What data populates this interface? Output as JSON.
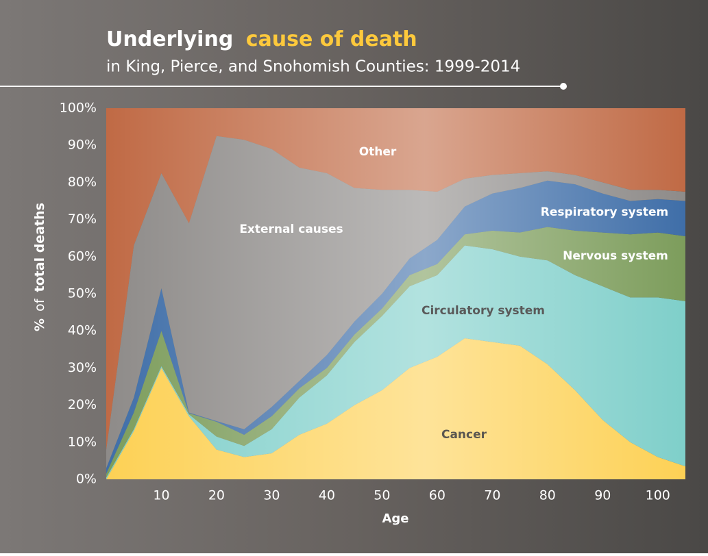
{
  "chart_data": {
    "type": "stacked_area",
    "title_parts": [
      "Underlying",
      "cause of death"
    ],
    "subtitle": "in King, Pierce, and Snohomish Counties: 1999-2014",
    "ylabel_parts": [
      "%",
      "of",
      "total deaths"
    ],
    "xlabel": "Age",
    "x": [
      0,
      5,
      10,
      15,
      20,
      25,
      30,
      35,
      40,
      45,
      50,
      55,
      60,
      65,
      70,
      75,
      80,
      85,
      90,
      95,
      100,
      105
    ],
    "series": [
      {
        "name": "Cancer",
        "color": "#fdd155",
        "values": [
          0,
          13,
          30,
          17,
          8,
          6,
          7,
          12,
          15,
          20,
          24,
          30,
          33,
          38,
          37,
          36,
          31,
          24,
          16,
          10,
          6,
          3.5
        ]
      },
      {
        "name": "Circulatory system",
        "color": "#7fcfca",
        "values": [
          0.5,
          0.5,
          0.5,
          0.5,
          3.5,
          3,
          6.5,
          10,
          13,
          17,
          20,
          22,
          22,
          25,
          25,
          24,
          28,
          31,
          36,
          39,
          43,
          44.5
        ]
      },
      {
        "name": "Nervous system",
        "color": "#7d9d5c",
        "values": [
          1,
          4.5,
          9.5,
          0.3,
          4,
          3,
          3.5,
          2.5,
          2,
          2,
          2,
          3,
          3,
          3,
          5,
          6.5,
          9,
          12,
          14.5,
          17,
          17.5,
          17.5
        ]
      },
      {
        "name": "Respiratory system",
        "color": "#3f6ea8",
        "values": [
          1.5,
          4,
          11.5,
          0.2,
          0.2,
          1.5,
          2.5,
          2,
          3.5,
          3.5,
          4,
          4.5,
          6.5,
          7.5,
          10,
          12,
          12.5,
          12.5,
          10.5,
          9,
          9,
          9.5
        ]
      },
      {
        "name": "External causes",
        "color": "#8e8b89",
        "values": [
          5,
          41,
          31,
          51,
          76.8,
          78,
          69.5,
          57.5,
          49,
          36,
          28,
          18.5,
          13,
          7.5,
          5,
          4,
          2.5,
          2.5,
          3,
          3,
          2.5,
          2.5
        ]
      },
      {
        "name": "Other",
        "color": "#c06a45",
        "values": [
          92,
          37,
          17.5,
          31,
          7.5,
          8.5,
          11,
          16,
          17.5,
          21.5,
          22,
          22,
          22.5,
          19,
          18,
          17.5,
          17,
          18,
          20,
          22,
          22,
          22.5
        ]
      }
    ],
    "xlim": [
      0,
      105
    ],
    "xticks": [
      10,
      20,
      30,
      40,
      50,
      60,
      70,
      80,
      90,
      100
    ],
    "ylim": [
      0,
      100
    ],
    "yticks": [
      {
        "value": 0,
        "label": "0%"
      },
      {
        "value": 10,
        "label": "10%"
      },
      {
        "value": 20,
        "label": "20%"
      },
      {
        "value": 30,
        "label": "30%"
      },
      {
        "value": 40,
        "label": "40%"
      },
      {
        "value": 50,
        "label": "50%"
      },
      {
        "value": 60,
        "label": "60%"
      },
      {
        "value": 70,
        "label": "70%"
      },
      {
        "value": 80,
        "label": "80%"
      },
      {
        "value": 90,
        "label": "90%"
      },
      {
        "value": 100,
        "label": "100%"
      }
    ],
    "grid": false
  }
}
